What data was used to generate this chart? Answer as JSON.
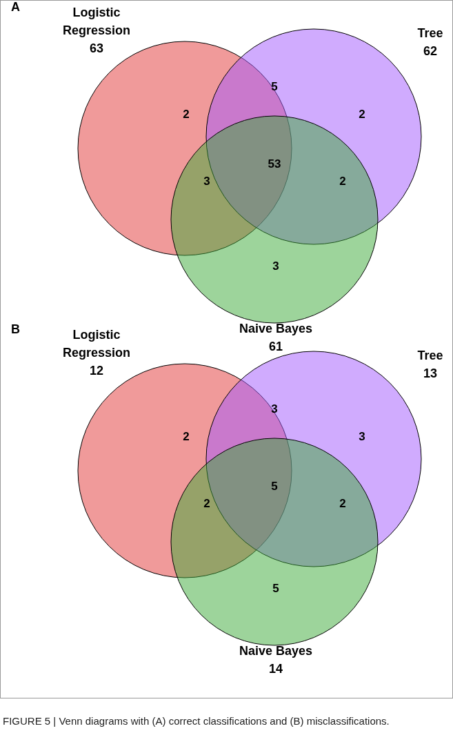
{
  "chart_data": [
    {
      "type": "other",
      "title": "A",
      "categories": [
        "Logistic Regression",
        "Tree",
        "Naive Bayes"
      ],
      "values": [
        63,
        62,
        61
      ],
      "data_labels": true,
      "colors": [
        "#e13535",
        "#a157fd",
        "#3ba937"
      ],
      "annotations": [
        "2",
        "2",
        "3",
        "5",
        "3",
        "2",
        "53"
      ]
    },
    {
      "type": "other",
      "title": "B",
      "categories": [
        "Logistic Regression",
        "Tree",
        "Naive Bayes"
      ],
      "values": [
        12,
        13,
        14
      ],
      "data_labels": true,
      "colors": [
        "#e13535",
        "#a157fd",
        "#3ba937"
      ],
      "annotations": [
        "2",
        "3",
        "5",
        "3",
        "2",
        "2",
        "5"
      ]
    },
    {
      "type": "other",
      "annotations": [
        "FIGURE 5 | Venn diagrams with (A) correct classifications and (B) misclassifications."
      ]
    }
  ]
}
